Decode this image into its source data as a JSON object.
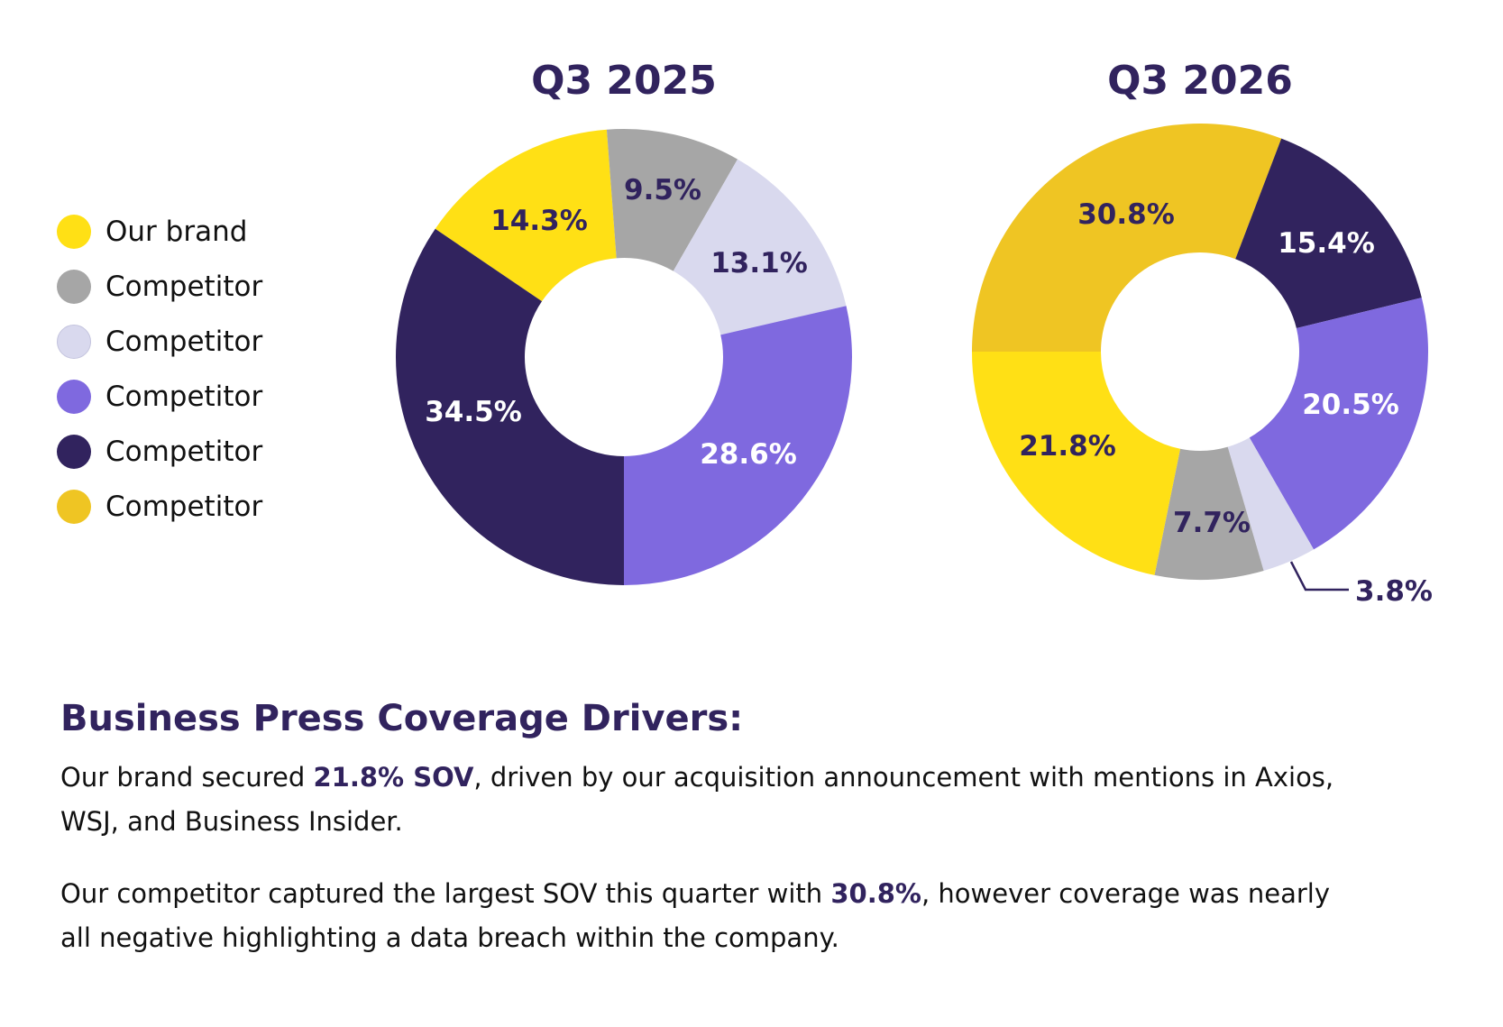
{
  "legend": [
    {
      "label": "Our brand",
      "color": "#FFE015"
    },
    {
      "label": "Competitor",
      "color": "#A6A6A6"
    },
    {
      "label": "Competitor",
      "color": "#D9D9EE"
    },
    {
      "label": "Competitor",
      "color": "#7F69DF"
    },
    {
      "label": "Competitor",
      "color": "#31235E"
    },
    {
      "label": "Competitor",
      "color": "#EFC523"
    }
  ],
  "chart_data": [
    {
      "type": "pie",
      "title": "Q3 2025",
      "donut": true,
      "slices": [
        {
          "series": "Our brand",
          "value": 14.3,
          "label": "14.3%",
          "color": "#FFE015"
        },
        {
          "series": "Competitor",
          "value": 9.5,
          "label": "9.5%",
          "color": "#A6A6A6"
        },
        {
          "series": "Competitor",
          "value": 13.1,
          "label": "13.1%",
          "color": "#D9D9EE"
        },
        {
          "series": "Competitor",
          "value": 28.6,
          "label": "28.6%",
          "color": "#7F69DF"
        },
        {
          "series": "Competitor",
          "value": 34.5,
          "label": "34.5%",
          "color": "#31235E"
        }
      ]
    },
    {
      "type": "pie",
      "title": "Q3 2026",
      "donut": true,
      "slices": [
        {
          "series": "Competitor",
          "value": 30.8,
          "label": "30.8%",
          "color": "#EFC523"
        },
        {
          "series": "Competitor",
          "value": 15.4,
          "label": "15.4%",
          "color": "#31235E"
        },
        {
          "series": "Competitor",
          "value": 20.5,
          "label": "20.5%",
          "color": "#7F69DF"
        },
        {
          "series": "Competitor",
          "value": 3.8,
          "label": "3.8%",
          "color": "#D9D9EE"
        },
        {
          "series": "Competitor",
          "value": 7.7,
          "label": "7.7%",
          "color": "#A6A6A6"
        },
        {
          "series": "Our brand",
          "value": 21.8,
          "label": "21.8%",
          "color": "#FFE015"
        }
      ]
    }
  ],
  "summary": {
    "heading": "Business Press Coverage Drivers:",
    "p1_pre": "Our brand secured ",
    "p1_bold": "21.8% SOV",
    "p1_post": ", driven by our acquisition announcement with mentions in Axios, WSJ, and Business Insider.",
    "p2_pre": "Our competitor captured the largest SOV this quarter with ",
    "p2_bold": "30.8%",
    "p2_post": ", however coverage was nearly all negative highlighting a data breach within the company."
  }
}
